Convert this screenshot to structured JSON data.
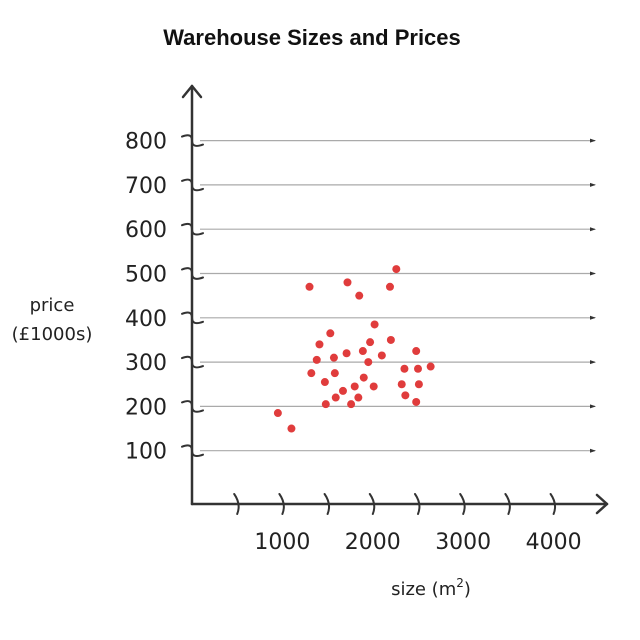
{
  "chart_data": {
    "type": "scatter",
    "title": "Warehouse Sizes and Prices",
    "xlabel_main": "size (m",
    "xlabel_sup": "2",
    "xlabel_end": ")",
    "ylabel_line1": "price",
    "ylabel_line2": "(£1000s)",
    "x_ticks": [
      500,
      1000,
      1500,
      2000,
      2500,
      3000,
      3500,
      4000
    ],
    "x_tick_labels": [
      "",
      "1000",
      "",
      "2000",
      "",
      "3000",
      "",
      "4000"
    ],
    "y_ticks": [
      100,
      200,
      300,
      400,
      500,
      600,
      700,
      800
    ],
    "y_tick_labels": [
      "100",
      "200",
      "300",
      "400",
      "500",
      "600",
      "700",
      "800"
    ],
    "xlim": [
      0,
      4400
    ],
    "ylim": [
      0,
      900
    ],
    "grid": true,
    "point_color": "#e03c3c",
    "points": [
      {
        "x": 950,
        "y": 185
      },
      {
        "x": 1100,
        "y": 150
      },
      {
        "x": 1300,
        "y": 470
      },
      {
        "x": 1320,
        "y": 275
      },
      {
        "x": 1380,
        "y": 305
      },
      {
        "x": 1410,
        "y": 340
      },
      {
        "x": 1470,
        "y": 255
      },
      {
        "x": 1480,
        "y": 205
      },
      {
        "x": 1530,
        "y": 365
      },
      {
        "x": 1570,
        "y": 310
      },
      {
        "x": 1580,
        "y": 275
      },
      {
        "x": 1590,
        "y": 220
      },
      {
        "x": 1670,
        "y": 235
      },
      {
        "x": 1710,
        "y": 320
      },
      {
        "x": 1720,
        "y": 480
      },
      {
        "x": 1760,
        "y": 205
      },
      {
        "x": 1800,
        "y": 245
      },
      {
        "x": 1840,
        "y": 220
      },
      {
        "x": 1850,
        "y": 450
      },
      {
        "x": 1890,
        "y": 325
      },
      {
        "x": 1900,
        "y": 265
      },
      {
        "x": 1950,
        "y": 300
      },
      {
        "x": 1970,
        "y": 345
      },
      {
        "x": 2010,
        "y": 245
      },
      {
        "x": 2020,
        "y": 385
      },
      {
        "x": 2100,
        "y": 315
      },
      {
        "x": 2190,
        "y": 470
      },
      {
        "x": 2200,
        "y": 350
      },
      {
        "x": 2260,
        "y": 510
      },
      {
        "x": 2320,
        "y": 250
      },
      {
        "x": 2350,
        "y": 285
      },
      {
        "x": 2360,
        "y": 225
      },
      {
        "x": 2480,
        "y": 325
      },
      {
        "x": 2480,
        "y": 210
      },
      {
        "x": 2500,
        "y": 285
      },
      {
        "x": 2510,
        "y": 250
      },
      {
        "x": 2640,
        "y": 290
      }
    ]
  }
}
